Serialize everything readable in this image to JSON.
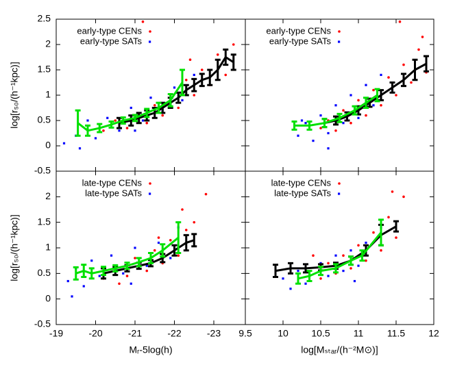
{
  "chart_data": [
    {
      "type": "scatter",
      "y_label": "log[r₅₀/(h⁻¹kpc)]",
      "xlim": [
        -19,
        -23.8
      ],
      "ylim": [
        -0.5,
        2.5
      ],
      "xticks": [
        -19,
        -20,
        -21,
        -22,
        -23
      ],
      "yticks": [
        -0.5,
        0,
        0.5,
        1,
        1.5,
        2,
        2.5
      ],
      "series": [
        {
          "name": "early-type CENs",
          "color": "#ff0000",
          "marker": "circle",
          "x": [
            -20.2,
            -20.5,
            -20.8,
            -21.0,
            -21.3,
            -21.5,
            -21.7,
            -21.9,
            -22.1,
            -22.3,
            -22.5,
            -22.7,
            -22.9,
            -23.1,
            -23.3,
            -23.5,
            -21.2,
            -22.4
          ],
          "values": [
            0.3,
            0.5,
            0.35,
            0.6,
            0.45,
            0.8,
            0.6,
            1.0,
            0.75,
            1.3,
            1.0,
            1.5,
            1.2,
            1.8,
            1.4,
            2.0,
            2.45,
            1.7
          ]
        },
        {
          "name": "early-type SATs",
          "color": "#0000ff",
          "marker": "square",
          "x": [
            -19.2,
            -19.5,
            -19.8,
            -20.0,
            -20.3,
            -20.6,
            -20.9,
            -21.2,
            -21.4,
            -21.7,
            -22.0,
            -22.2,
            -22.5,
            -19.6,
            -21.0
          ],
          "values": [
            0.05,
            0.2,
            0.5,
            0.15,
            0.55,
            0.3,
            0.75,
            0.5,
            0.95,
            0.7,
            1.15,
            0.9,
            1.4,
            -0.05,
            0.3
          ]
        },
        {
          "color": "#000000",
          "x": [
            -20.6,
            -20.9,
            -21.1,
            -21.3,
            -21.5,
            -21.7,
            -21.9,
            -22.1,
            -22.3,
            -22.5,
            -22.7,
            -22.9,
            -23.1,
            -23.3,
            -23.5
          ],
          "values": [
            0.45,
            0.5,
            0.55,
            0.6,
            0.65,
            0.75,
            0.85,
            0.95,
            1.1,
            1.2,
            1.3,
            1.35,
            1.5,
            1.75,
            1.65
          ],
          "errors": [
            0.1,
            0.1,
            0.1,
            0.1,
            0.1,
            0.1,
            0.1,
            0.1,
            0.1,
            0.12,
            0.12,
            0.15,
            0.2,
            0.15,
            0.15
          ]
        },
        {
          "color": "#00e000",
          "x": [
            -19.55,
            -19.8,
            -20.1,
            -20.4,
            -20.7,
            -21.0,
            -21.3,
            -21.6,
            -21.9,
            -22.2
          ],
          "values": [
            0.45,
            0.3,
            0.35,
            0.42,
            0.5,
            0.55,
            0.65,
            0.75,
            0.9,
            1.25
          ],
          "errors": [
            0.25,
            0.1,
            0.08,
            0.06,
            0.06,
            0.06,
            0.08,
            0.1,
            0.12,
            0.25
          ]
        }
      ]
    },
    {
      "type": "scatter",
      "xlim": [
        9.5,
        12
      ],
      "ylim": [
        -0.5,
        2.5
      ],
      "xticks": [
        9.5,
        10,
        10.5,
        11,
        11.5,
        12
      ],
      "yticks": [
        -0.5,
        0,
        0.5,
        1,
        1.5,
        2,
        2.5
      ],
      "series": [
        {
          "name": "early-type CENs",
          "color": "#ff0000",
          "marker": "circle",
          "x": [
            10.6,
            10.7,
            10.8,
            10.9,
            11.0,
            11.1,
            11.2,
            11.3,
            11.4,
            11.5,
            11.6,
            11.7,
            11.8,
            11.9,
            11.85,
            11.55,
            10.5
          ],
          "values": [
            0.5,
            0.3,
            0.7,
            0.45,
            0.9,
            0.6,
            1.1,
            0.8,
            1.35,
            1.0,
            1.6,
            1.25,
            1.9,
            1.45,
            2.15,
            2.45,
            0.35
          ]
        },
        {
          "name": "early-type SATs",
          "color": "#0000ff",
          "marker": "square",
          "x": [
            10.2,
            10.3,
            10.4,
            10.5,
            10.6,
            10.7,
            10.8,
            10.9,
            11.0,
            11.1,
            11.2,
            11.3,
            11.45,
            10.25,
            10.6
          ],
          "values": [
            0.2,
            0.45,
            0.1,
            0.6,
            0.25,
            0.8,
            0.45,
            1.0,
            0.55,
            1.2,
            0.8,
            1.4,
            1.1,
            0.5,
            -0.05
          ]
        },
        {
          "color": "#000000",
          "x": [
            10.55,
            10.7,
            10.85,
            11.0,
            11.15,
            11.3,
            11.45,
            11.6,
            11.75,
            11.9
          ],
          "values": [
            0.45,
            0.5,
            0.58,
            0.7,
            0.85,
            1.0,
            1.15,
            1.3,
            1.5,
            1.62
          ],
          "errors": [
            0.08,
            0.08,
            0.08,
            0.08,
            0.08,
            0.1,
            0.1,
            0.12,
            0.2,
            0.15
          ]
        },
        {
          "color": "#00e000",
          "x": [
            10.15,
            10.35,
            10.55,
            10.75,
            10.95,
            11.1,
            11.25
          ],
          "values": [
            0.4,
            0.4,
            0.45,
            0.55,
            0.7,
            0.85,
            1.0
          ],
          "errors": [
            0.08,
            0.08,
            0.08,
            0.08,
            0.08,
            0.1,
            0.12
          ]
        }
      ]
    },
    {
      "type": "scatter",
      "y_label": "log[r₅₀/(h⁻¹kpc)]",
      "x_label": "Mᵣ-5log(h)",
      "xlim": [
        -19,
        -23.8
      ],
      "ylim": [
        -0.5,
        2.5
      ],
      "xticks": [
        -19,
        -20,
        -21,
        -22,
        -23
      ],
      "yticks": [
        -0.5,
        0,
        0.5,
        1,
        1.5,
        2
      ],
      "series": [
        {
          "name": "late-type CENs",
          "color": "#ff0000",
          "marker": "circle",
          "x": [
            -20.2,
            -20.5,
            -20.8,
            -21.0,
            -21.3,
            -21.5,
            -21.7,
            -21.9,
            -22.1,
            -22.3,
            -22.5,
            -22.2,
            -22.8,
            -20.6,
            -21.6
          ],
          "values": [
            0.4,
            0.65,
            0.45,
            0.8,
            0.55,
            0.95,
            0.7,
            1.15,
            0.85,
            1.35,
            1.5,
            1.75,
            2.05,
            0.3,
            1.2
          ]
        },
        {
          "name": "late-type SATs",
          "color": "#0000ff",
          "marker": "square",
          "x": [
            -19.3,
            -19.5,
            -19.7,
            -19.9,
            -20.1,
            -20.4,
            -20.7,
            -21.0,
            -21.3,
            -21.6,
            -21.9,
            -22.1,
            -19.4,
            -20.9
          ],
          "values": [
            0.35,
            0.6,
            0.25,
            0.75,
            0.45,
            0.85,
            0.5,
            1.0,
            0.65,
            1.1,
            0.8,
            1.4,
            0.05,
            0.3
          ]
        },
        {
          "color": "#000000",
          "x": [
            -20.2,
            -20.5,
            -20.8,
            -21.1,
            -21.4,
            -21.7,
            -22.0,
            -22.3,
            -22.5
          ],
          "values": [
            0.5,
            0.55,
            0.6,
            0.65,
            0.7,
            0.8,
            0.95,
            1.1,
            1.15
          ],
          "errors": [
            0.1,
            0.08,
            0.06,
            0.06,
            0.06,
            0.08,
            0.1,
            0.15,
            0.12
          ]
        },
        {
          "color": "#00e000",
          "x": [
            -19.5,
            -19.7,
            -19.9,
            -20.2,
            -20.5,
            -20.8,
            -21.1,
            -21.4,
            -21.7,
            -22.1
          ],
          "values": [
            0.5,
            0.55,
            0.5,
            0.55,
            0.6,
            0.65,
            0.72,
            0.8,
            0.95,
            1.2
          ],
          "errors": [
            0.12,
            0.12,
            0.1,
            0.08,
            0.06,
            0.06,
            0.08,
            0.1,
            0.12,
            0.3
          ]
        }
      ]
    },
    {
      "type": "scatter",
      "x_label": "log[Mₛₜₐᵣ/(h⁻²M⊙)]",
      "xlim": [
        9.5,
        12
      ],
      "ylim": [
        -0.5,
        2.5
      ],
      "xticks": [
        9.5,
        10,
        10.5,
        11,
        11.5,
        12
      ],
      "yticks": [
        -0.5,
        0,
        0.5,
        1,
        1.5,
        2
      ],
      "series": [
        {
          "name": "late-type CENs",
          "color": "#ff0000",
          "marker": "circle",
          "x": [
            10.3,
            10.5,
            10.6,
            10.7,
            10.8,
            10.9,
            11.0,
            11.1,
            11.2,
            11.3,
            11.4,
            11.5,
            11.6,
            11.45,
            10.4
          ],
          "values": [
            0.6,
            0.4,
            0.7,
            0.5,
            0.85,
            0.6,
            1.05,
            0.75,
            1.3,
            0.95,
            1.6,
            1.2,
            2.0,
            2.1,
            0.85
          ]
        },
        {
          "name": "late-type SATs",
          "color": "#0000ff",
          "marker": "square",
          "x": [
            10.0,
            10.2,
            10.3,
            10.5,
            10.6,
            10.7,
            10.8,
            10.9,
            11.0,
            11.1,
            11.3,
            10.1,
            10.95
          ],
          "values": [
            0.4,
            0.55,
            0.3,
            0.7,
            0.45,
            0.85,
            0.55,
            0.95,
            0.65,
            1.1,
            1.4,
            0.2,
            0.35
          ]
        },
        {
          "color": "#000000",
          "x": [
            9.9,
            10.1,
            10.3,
            10.5,
            10.7,
            10.9,
            11.1,
            11.3,
            11.5
          ],
          "values": [
            0.55,
            0.6,
            0.6,
            0.62,
            0.65,
            0.75,
            0.95,
            1.25,
            1.42
          ],
          "errors": [
            0.12,
            0.1,
            0.08,
            0.06,
            0.06,
            0.08,
            0.1,
            0.2,
            0.1
          ]
        },
        {
          "color": "#00e000",
          "x": [
            10.2,
            10.35,
            10.5,
            10.7,
            10.9,
            11.05,
            11.3
          ],
          "values": [
            0.4,
            0.45,
            0.55,
            0.6,
            0.75,
            0.85,
            1.3
          ],
          "errors": [
            0.1,
            0.1,
            0.08,
            0.08,
            0.08,
            0.1,
            0.25
          ]
        }
      ]
    }
  ]
}
